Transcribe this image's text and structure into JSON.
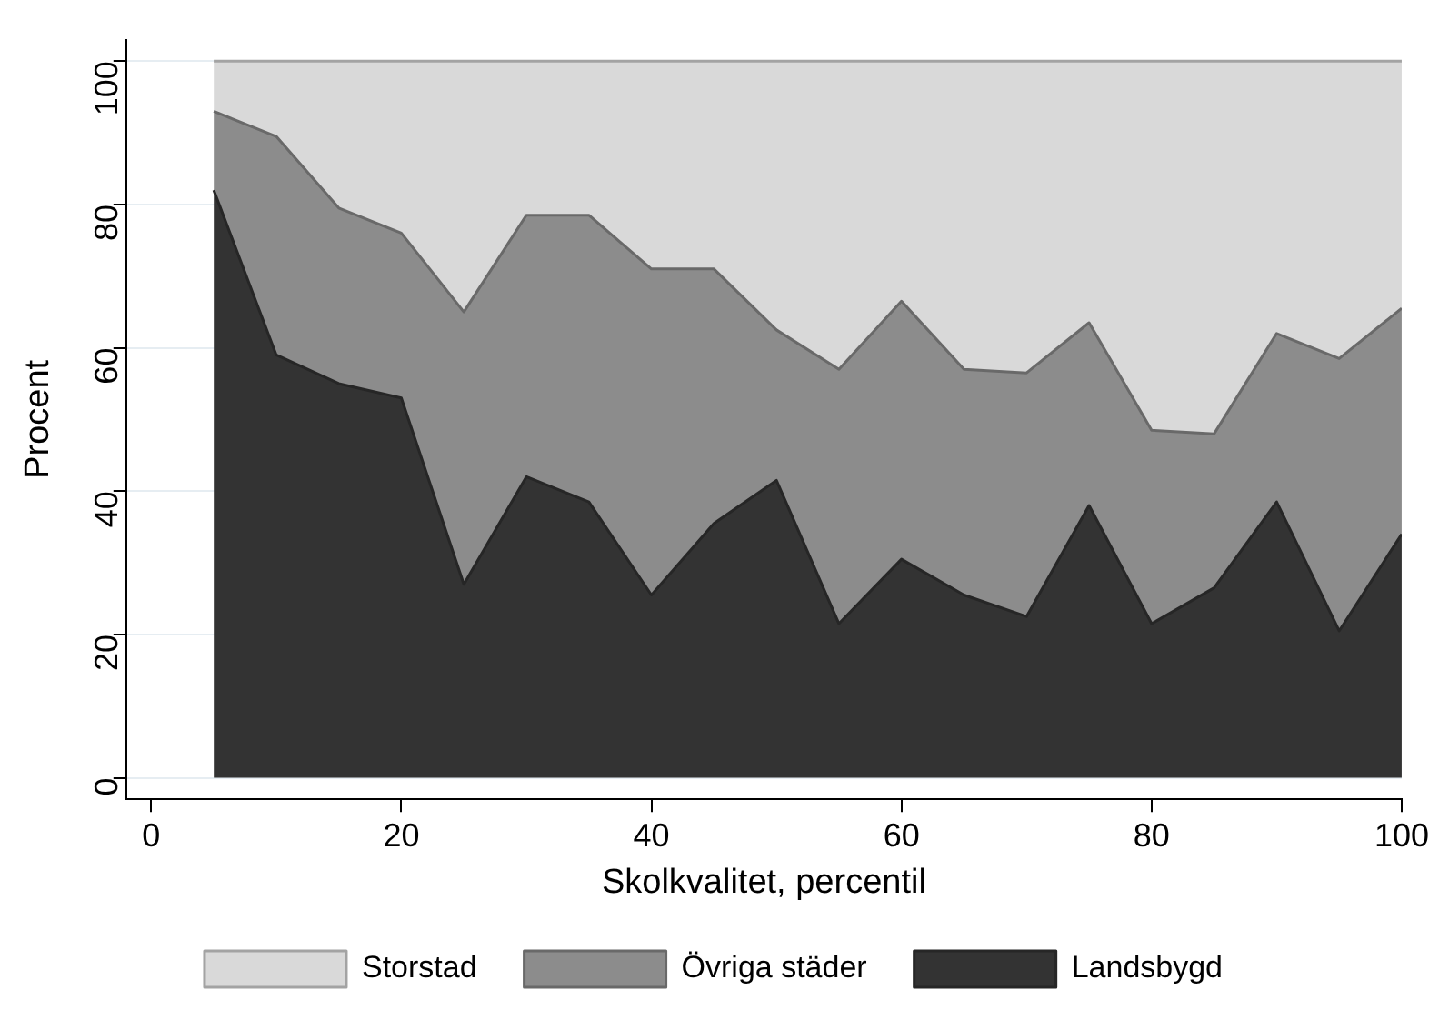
{
  "chart_data": {
    "type": "area",
    "stacked": true,
    "xlabel": "Skolkvalitet, percentil",
    "ylabel": "Procent",
    "x": [
      5,
      10,
      15,
      20,
      25,
      30,
      35,
      40,
      45,
      50,
      55,
      60,
      65,
      70,
      75,
      80,
      85,
      90,
      95,
      100
    ],
    "xlim": [
      -2,
      100
    ],
    "xticks": [
      0,
      20,
      40,
      60,
      80,
      100
    ],
    "ylim": [
      -3,
      103
    ],
    "yticks": [
      0,
      20,
      40,
      60,
      80,
      100
    ],
    "grid": "y",
    "legend": "bottom",
    "series": [
      {
        "name": "Landsbygd",
        "color": "#333333",
        "values": [
          82,
          59,
          55,
          53,
          27,
          42,
          38.5,
          25.5,
          35.5,
          41.5,
          21.5,
          30.5,
          25.5,
          22.5,
          38,
          21.5,
          26.5,
          38.5,
          20.5,
          34
        ]
      },
      {
        "name": "Övriga städer",
        "color": "#8c8c8c",
        "values": [
          11,
          30.5,
          24.5,
          23,
          38,
          36.5,
          40,
          45.5,
          35.5,
          21,
          35.5,
          36,
          31.5,
          34,
          25.5,
          27,
          21.5,
          23.5,
          38,
          31.5
        ]
      },
      {
        "name": "Storstad",
        "color": "#d9d9d9",
        "values": [
          7,
          10.5,
          20.5,
          24,
          35,
          21.5,
          21.5,
          29,
          29,
          37.5,
          43,
          33.5,
          43,
          43.5,
          36.5,
          51.5,
          52,
          38,
          41.5,
          34.5
        ]
      }
    ]
  }
}
